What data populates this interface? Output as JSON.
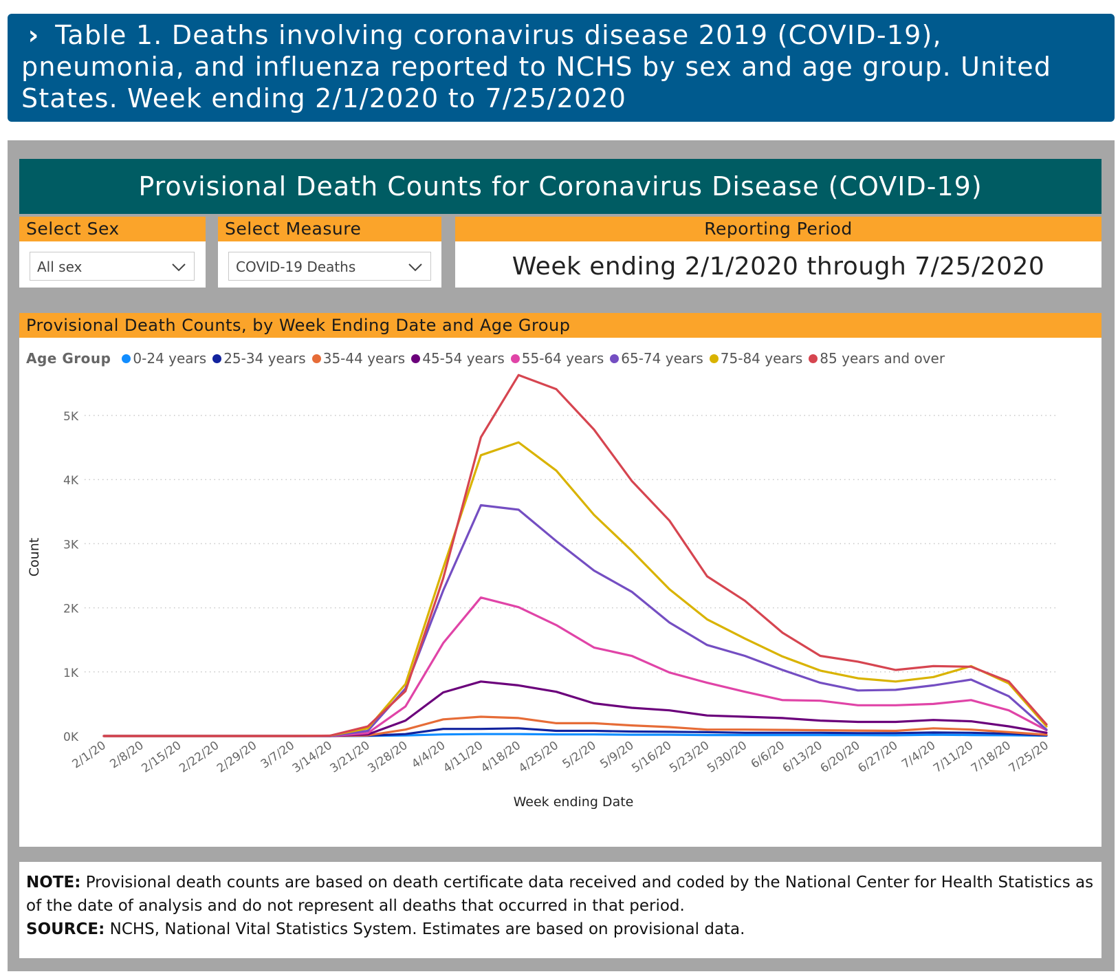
{
  "header": {
    "chevron": "›",
    "title": "Table 1. Deaths involving coronavirus disease 2019 (COVID-19), pneumonia, and influenza reported to NCHS by sex and age group. United States. Week ending 2/1/2020 to 7/25/2020"
  },
  "dashboard": {
    "title": "Provisional Death Counts for Coronavirus Disease (COVID-19)",
    "select_sex": {
      "label": "Select Sex",
      "value": "All sex"
    },
    "select_measure": {
      "label": "Select Measure",
      "value": "COVID-19 Deaths"
    },
    "reporting_period": {
      "label": "Reporting Period",
      "value": "Week ending 2/1/2020 through 7/25/2020"
    },
    "chart_header": "Provisional Death Counts, by Week Ending Date and Age Group",
    "legend_title": "Age Group"
  },
  "note": {
    "note_label": "NOTE:",
    "note_text": " Provisional death counts are based on death certificate data received and coded by the National Center for Health Statistics as of the date of analysis and do not represent all deaths that occurred in that period.",
    "source_label": "SOURCE:",
    "source_text": " NCHS, National Vital Statistics System. Estimates are based on provisional data."
  },
  "chart_data": {
    "type": "line",
    "xlabel": "Week ending Date",
    "ylabel": "Count",
    "ylim": [
      0,
      5700
    ],
    "yticks": [
      0,
      1000,
      2000,
      3000,
      4000,
      5000
    ],
    "ytick_labels": [
      "0K",
      "1K",
      "2K",
      "3K",
      "4K",
      "5K"
    ],
    "grid": "horizontal dotted",
    "legend": "top",
    "categories": [
      "2/1/20",
      "2/8/20",
      "2/15/20",
      "2/22/20",
      "2/29/20",
      "3/7/20",
      "3/14/20",
      "3/21/20",
      "3/28/20",
      "4/4/20",
      "4/11/20",
      "4/18/20",
      "4/25/20",
      "5/2/20",
      "5/9/20",
      "5/16/20",
      "5/23/20",
      "5/30/20",
      "6/6/20",
      "6/13/20",
      "6/20/20",
      "6/27/20",
      "7/4/20",
      "7/11/20",
      "7/18/20",
      "7/25/20"
    ],
    "series": [
      {
        "name": "0-24 years",
        "color": "#118dff",
        "values": [
          0,
          0,
          0,
          0,
          0,
          0,
          0,
          2,
          10,
          25,
          30,
          30,
          25,
          25,
          20,
          20,
          15,
          15,
          15,
          15,
          15,
          12,
          20,
          15,
          12,
          5
        ]
      },
      {
        "name": "25-34 years",
        "color": "#12239e",
        "values": [
          0,
          0,
          0,
          0,
          0,
          0,
          0,
          5,
          30,
          110,
          110,
          120,
          80,
          80,
          70,
          65,
          60,
          50,
          50,
          50,
          45,
          45,
          55,
          50,
          35,
          10
        ]
      },
      {
        "name": "35-44 years",
        "color": "#e66c37",
        "values": [
          0,
          0,
          0,
          0,
          0,
          0,
          0,
          10,
          100,
          260,
          300,
          280,
          200,
          200,
          165,
          140,
          100,
          100,
          95,
          90,
          85,
          80,
          120,
          100,
          60,
          20
        ]
      },
      {
        "name": "45-54 years",
        "color": "#6b007b",
        "values": [
          0,
          0,
          0,
          0,
          0,
          0,
          0,
          25,
          240,
          680,
          850,
          790,
          690,
          510,
          440,
          400,
          320,
          300,
          280,
          240,
          220,
          220,
          250,
          230,
          150,
          50
        ]
      },
      {
        "name": "55-64 years",
        "color": "#e044a7",
        "values": [
          0,
          0,
          0,
          0,
          0,
          0,
          0,
          45,
          460,
          1450,
          2160,
          2010,
          1730,
          1380,
          1250,
          990,
          830,
          690,
          560,
          550,
          480,
          480,
          500,
          560,
          400,
          90
        ]
      },
      {
        "name": "65-74 years",
        "color": "#744ec2",
        "values": [
          0,
          0,
          0,
          0,
          0,
          0,
          0,
          80,
          740,
          2270,
          3600,
          3530,
          3040,
          2580,
          2250,
          1770,
          1420,
          1250,
          1030,
          830,
          710,
          720,
          790,
          880,
          620,
          100
        ]
      },
      {
        "name": "75-84 years",
        "color": "#d9b300",
        "values": [
          0,
          0,
          0,
          0,
          0,
          0,
          5,
          120,
          810,
          2620,
          4380,
          4580,
          4140,
          3450,
          2890,
          2290,
          1820,
          1520,
          1240,
          1020,
          900,
          850,
          920,
          1090,
          820,
          150
        ]
      },
      {
        "name": "85 years and over",
        "color": "#d64550",
        "values": [
          0,
          0,
          0,
          0,
          0,
          0,
          5,
          150,
          700,
          2460,
          4660,
          5630,
          5410,
          4780,
          3980,
          3360,
          2490,
          2110,
          1610,
          1250,
          1160,
          1030,
          1090,
          1080,
          850,
          180
        ]
      }
    ]
  }
}
